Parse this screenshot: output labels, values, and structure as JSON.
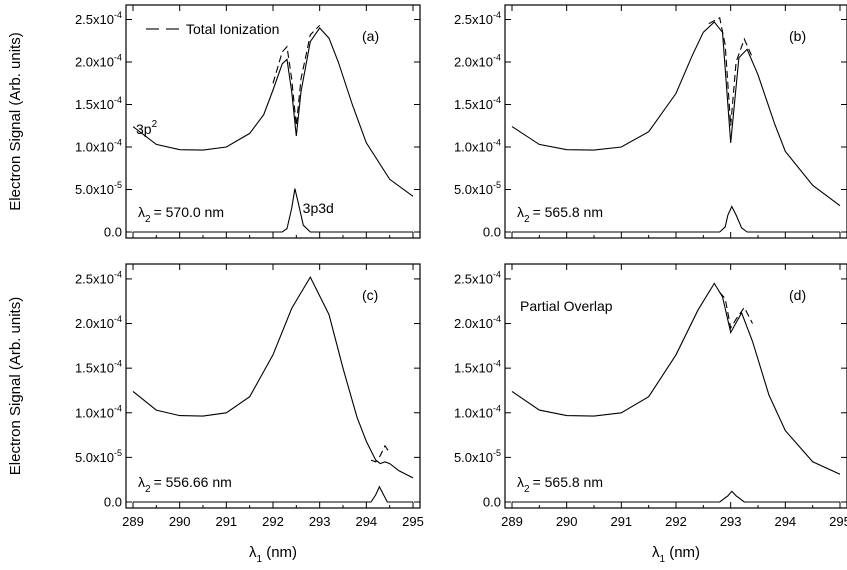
{
  "chart_data": {
    "type": "line",
    "shared": {
      "xlim": [
        289,
        295
      ],
      "ylim": [
        0,
        0.00026
      ],
      "xticks": [
        289,
        290,
        291,
        292,
        293,
        294,
        295
      ],
      "yticks": [
        0,
        5e-05,
        0.0001,
        0.00015,
        0.0002,
        0.00025
      ],
      "xlabel_main": "λ",
      "xlabel_sub": "1",
      "xlabel_tail": " (nm)",
      "ylabel": "Electron Signal (Arb. units)",
      "legend": {
        "label": "Total Ionization",
        "placement": "top-left",
        "style": "dashed"
      },
      "xtick_labels": [
        "289",
        "290",
        "291",
        "292",
        "293",
        "294",
        "295"
      ],
      "ytick_labels": [
        {
          "mant": "0.0",
          "exp": ""
        },
        {
          "mant": "5.0x10",
          "exp": "-5"
        },
        {
          "mant": "1.0x10",
          "exp": "-4"
        },
        {
          "mant": "1.5x10",
          "exp": "-4"
        },
        {
          "mant": "2.0x10",
          "exp": "-4"
        },
        {
          "mant": "2.5x10",
          "exp": "-4"
        }
      ]
    },
    "panels": [
      {
        "id": "a",
        "label": "(a)",
        "lambda2_text": "= 570.0 nm",
        "annotations": {
          "state_3p2": {
            "main": "3p",
            "sup": "2"
          },
          "state_3p3d": "3p3d"
        },
        "series": [
          {
            "style": "solid",
            "x": [
              289.0,
              289.5,
              290.0,
              290.5,
              291.0,
              291.5,
              291.8,
              292.0,
              292.2,
              292.3,
              292.4,
              292.5,
              292.6,
              292.8,
              293.0,
              293.2,
              293.4,
              293.7,
              294.0,
              294.5,
              295.0
            ],
            "y": [
              0.000124,
              0.000103,
              9.68e-05,
              9.63e-05,
              0.0001,
              0.000116,
              0.000138,
              0.000167,
              0.000198,
              0.000203,
              0.000165,
              0.000113,
              0.000165,
              0.000224,
              0.00024,
              0.000228,
              0.0002,
              0.00015,
              0.000105,
              6.2e-05,
              4.2e-05
            ]
          },
          {
            "style": "dashed",
            "x": [
              292.0,
              292.2,
              292.3,
              292.4,
              292.5,
              292.6,
              292.8,
              293.0
            ],
            "y": [
              0.000175,
              0.000212,
              0.000218,
              0.00018,
              0.000125,
              0.00018,
              0.000232,
              0.000243
            ]
          },
          {
            "style": "solid",
            "x": [
              289.0,
              292.2,
              292.3,
              292.4,
              292.47,
              292.55,
              292.65,
              292.8,
              295.0
            ],
            "y": [
              0,
              0,
              4e-06,
              2.8e-05,
              5.1e-05,
              3.2e-05,
              8e-06,
              0,
              0
            ]
          }
        ]
      },
      {
        "id": "b",
        "label": "(b)",
        "lambda2_text": "= 565.8 nm",
        "series": [
          {
            "style": "solid",
            "x": [
              289.0,
              289.5,
              290.0,
              290.5,
              291.0,
              291.5,
              292.0,
              292.3,
              292.5,
              292.7,
              292.85,
              293.0,
              293.15,
              293.3,
              293.5,
              293.8,
              294.0,
              294.5,
              295.0
            ],
            "y": [
              0.000124,
              0.000103,
              9.68e-05,
              9.63e-05,
              0.0001,
              0.000118,
              0.000163,
              0.000208,
              0.000235,
              0.000247,
              0.000235,
              0.000105,
              0.000205,
              0.000215,
              0.000185,
              0.000128,
              9.5e-05,
              5.5e-05,
              3.1e-05
            ]
          },
          {
            "style": "dashed",
            "x": [
              292.6,
              292.8,
              292.9,
              293.0,
              293.1,
              293.25,
              293.4
            ],
            "y": [
              0.000245,
              0.000252,
              0.00022,
              0.000125,
              0.0002,
              0.000227,
              0.000205
            ]
          },
          {
            "style": "solid",
            "x": [
              289.0,
              292.8,
              292.9,
              292.95,
              293.02,
              293.1,
              293.2,
              293.3,
              295.0
            ],
            "y": [
              0,
              0,
              6e-06,
              2e-05,
              3e-05,
              2e-05,
              5e-06,
              0,
              0
            ]
          }
        ]
      },
      {
        "id": "c",
        "label": "(c)",
        "lambda2_text": "= 556.66 nm",
        "series": [
          {
            "style": "solid",
            "x": [
              289.0,
              289.5,
              290.0,
              290.5,
              291.0,
              291.5,
              292.0,
              292.4,
              292.8,
              293.2,
              293.5,
              293.8,
              294.0,
              294.2,
              294.3,
              294.4,
              294.5,
              294.7,
              295.0
            ],
            "y": [
              0.000124,
              0.000103,
              9.68e-05,
              9.63e-05,
              0.0001,
              0.000118,
              0.000165,
              0.000217,
              0.000252,
              0.00021,
              0.00015,
              9.5e-05,
              6.8e-05,
              4.7e-05,
              4.3e-05,
              4.5e-05,
              4.3e-05,
              3.5e-05,
              2.7e-05
            ]
          },
          {
            "style": "dashed",
            "x": [
              294.1,
              294.2,
              294.3,
              294.4,
              294.5
            ],
            "y": [
              4.7e-05,
              4.5e-05,
              5.2e-05,
              6.3e-05,
              5.5e-05
            ]
          },
          {
            "style": "solid",
            "x": [
              289.0,
              294.1,
              294.2,
              294.28,
              294.35,
              294.45,
              295.0
            ],
            "y": [
              0,
              0,
              8e-06,
              1.7e-05,
              1e-05,
              0,
              0
            ]
          }
        ]
      },
      {
        "id": "d",
        "label": "(d)",
        "lambda2_text": "= 565.8 nm",
        "note": "Partial Overlap",
        "series": [
          {
            "style": "solid",
            "x": [
              289.0,
              289.5,
              290.0,
              290.5,
              291.0,
              291.5,
              292.0,
              292.4,
              292.7,
              292.85,
              293.0,
              293.2,
              293.4,
              293.7,
              294.0,
              294.5,
              295.0
            ],
            "y": [
              0.000124,
              0.000103,
              9.68e-05,
              9.63e-05,
              0.0001,
              0.000118,
              0.000165,
              0.000215,
              0.000245,
              0.00023,
              0.00019,
              0.000212,
              0.00018,
              0.00012,
              8e-05,
              4.5e-05,
              3.1e-05
            ]
          },
          {
            "style": "dashed",
            "x": [
              292.8,
              292.9,
              293.0,
              293.1,
              293.25,
              293.4
            ],
            "y": [
              0.000235,
              0.000228,
              0.000195,
              0.000205,
              0.000218,
              0.0002
            ]
          },
          {
            "style": "solid",
            "x": [
              289.0,
              292.8,
              292.95,
              293.02,
              293.1,
              293.25,
              295.0
            ],
            "y": [
              0,
              0,
              7e-06,
              1.2e-05,
              7e-06,
              0,
              0
            ]
          }
        ]
      }
    ]
  }
}
